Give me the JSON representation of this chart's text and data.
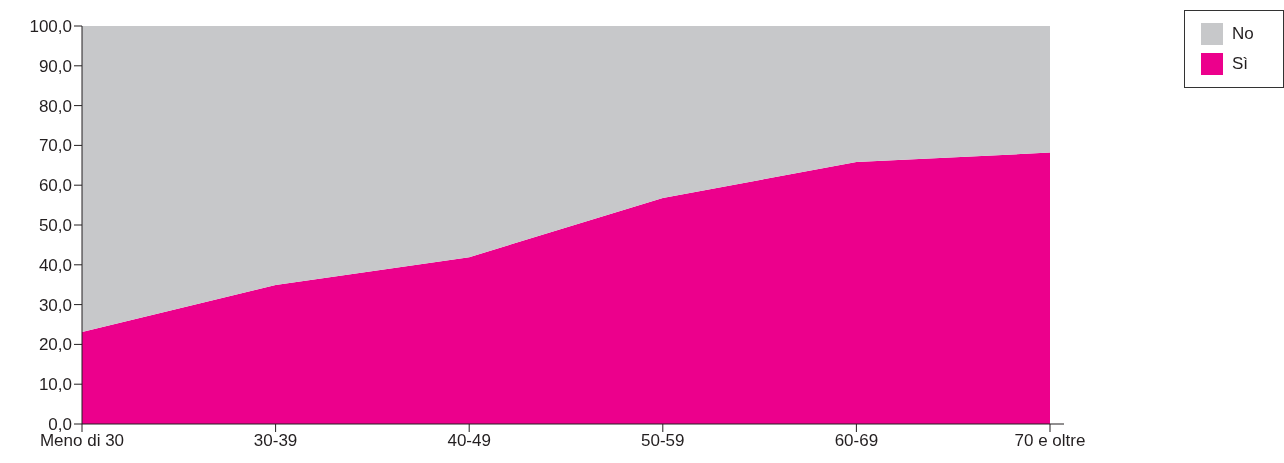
{
  "chart_data": {
    "type": "area",
    "stacked": true,
    "categories": [
      "Meno di 30",
      "30-39",
      "40-49",
      "50-59",
      "60-69",
      "70 e oltre"
    ],
    "series": [
      {
        "name": "Sì",
        "color": "#ec008c",
        "values": [
          23.1,
          34.9,
          41.9,
          56.8,
          65.8,
          68.2
        ]
      },
      {
        "name": "No",
        "color": "#c7c8ca",
        "values": [
          76.9,
          65.1,
          58.1,
          43.2,
          34.2,
          31.8
        ]
      }
    ],
    "ylim": [
      0,
      100
    ],
    "yticks": [
      {
        "value": 0,
        "label": "0,0"
      },
      {
        "value": 10,
        "label": "10,0"
      },
      {
        "value": 20,
        "label": "20,0"
      },
      {
        "value": 30,
        "label": "30,0"
      },
      {
        "value": 40,
        "label": "40,0"
      },
      {
        "value": 50,
        "label": "50,0"
      },
      {
        "value": 60,
        "label": "60,0"
      },
      {
        "value": 70,
        "label": "70,0"
      },
      {
        "value": 80,
        "label": "80,0"
      },
      {
        "value": 90,
        "label": "90,0"
      },
      {
        "value": 100,
        "label": "100,0"
      }
    ],
    "grid": false,
    "legend": "top right"
  }
}
